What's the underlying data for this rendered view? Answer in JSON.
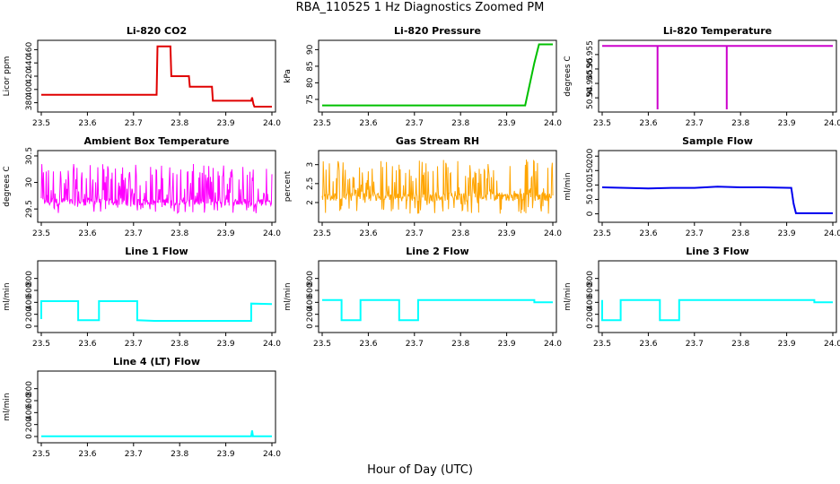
{
  "figure": {
    "title": "RBA_110525  1 Hz Diagnostics Zoomed PM",
    "xlabel": "Hour of Day (UTC)"
  },
  "chart_data": [
    {
      "type": "line",
      "title": "Li-820 CO2",
      "ylabel": "Licor ppm",
      "color": "#e00000",
      "xlim": [
        23.5,
        24.0
      ],
      "ylim": [
        370,
        470
      ],
      "xticks": [
        23.5,
        23.6,
        23.7,
        23.8,
        23.9,
        24.0
      ],
      "yticks": [
        380,
        400,
        420,
        440,
        460
      ],
      "series": [
        {
          "x": [
            23.5,
            23.6,
            23.69,
            23.75,
            23.752,
            23.78,
            23.782,
            23.82,
            23.822,
            23.87,
            23.872,
            23.955,
            23.957,
            23.96,
            23.962,
            24.0
          ],
          "y": [
            392,
            392,
            392,
            392,
            465,
            465,
            420,
            420,
            404,
            404,
            383,
            383,
            388,
            378,
            374,
            374
          ]
        }
      ]
    },
    {
      "type": "line",
      "title": "Li-820 Pressure",
      "ylabel": "kPa",
      "color": "#00c000",
      "xlim": [
        23.5,
        24.0
      ],
      "ylim": [
        72,
        92
      ],
      "xticks": [
        23.5,
        23.6,
        23.7,
        23.8,
        23.9,
        24.0
      ],
      "yticks": [
        75,
        80,
        85,
        90
      ],
      "series": [
        {
          "x": [
            23.5,
            23.93,
            23.94,
            23.96,
            23.97,
            24.0
          ],
          "y": [
            73.2,
            73.2,
            73.2,
            86,
            91.6,
            91.6
          ]
        }
      ]
    },
    {
      "type": "line",
      "title": "Li-820 Temperature",
      "ylabel": "degrees C",
      "color": "#cc00cc",
      "xlim": [
        23.5,
        24.0
      ],
      "ylim": [
        50.936,
        50.959
      ],
      "xticks": [
        23.5,
        23.6,
        23.7,
        23.8,
        23.9,
        24.0
      ],
      "yticks": [
        50.94,
        50.945,
        50.95,
        50.955
      ],
      "series": [
        {
          "x": [
            23.5,
            23.62,
            23.62,
            23.62,
            23.77,
            23.77,
            23.77,
            24.0
          ],
          "y": [
            50.958,
            50.958,
            50.936,
            50.958,
            50.958,
            50.936,
            50.958,
            50.958
          ]
        }
      ]
    },
    {
      "type": "line",
      "title": "Ambient Box Temperature",
      "ylabel": "degrees C",
      "color": "#ff00ff",
      "xlim": [
        23.5,
        24.0
      ],
      "ylim": [
        29.3,
        30.55
      ],
      "xticks": [
        23.5,
        23.6,
        23.7,
        23.8,
        23.9,
        24.0
      ],
      "yticks": [
        29.5,
        30.0,
        30.5
      ],
      "noise": {
        "base": 29.63,
        "low": 29.42,
        "high": 30.35
      }
    },
    {
      "type": "line",
      "title": "Gas Stream RH",
      "ylabel": "percent",
      "color": "#ffa500",
      "xlim": [
        23.5,
        24.0
      ],
      "ylim": [
        1.55,
        3.3
      ],
      "xticks": [
        23.5,
        23.6,
        23.7,
        23.8,
        23.9,
        24.0
      ],
      "yticks": [
        2.0,
        2.5,
        3.0
      ],
      "noise": {
        "base": 2.15,
        "low": 1.7,
        "high": 3.15
      }
    },
    {
      "type": "line",
      "title": "Sample Flow",
      "ylabel": "ml/min",
      "color": "#0000ee",
      "xlim": [
        23.5,
        24.0
      ],
      "ylim": [
        -20,
        210
      ],
      "xticks": [
        23.5,
        23.6,
        23.7,
        23.8,
        23.9,
        24.0
      ],
      "yticks": [
        0,
        50,
        100,
        150,
        200
      ],
      "series": [
        {
          "x": [
            23.5,
            23.6,
            23.65,
            23.7,
            23.75,
            23.8,
            23.85,
            23.91,
            23.915,
            23.92,
            24.0
          ],
          "y": [
            92,
            88,
            90,
            90,
            94,
            92,
            92,
            90,
            35,
            2,
            2
          ]
        }
      ]
    },
    {
      "type": "line",
      "title": "Line 1 Flow",
      "ylabel": "ml/min",
      "color": "#00ffff",
      "xlim": [
        23.5,
        24.0
      ],
      "ylim": [
        -60,
        1050
      ],
      "xticks": [
        23.5,
        23.6,
        23.7,
        23.8,
        23.9,
        24.0
      ],
      "yticks": [
        0,
        200,
        400,
        600,
        800
      ],
      "series": [
        {
          "x": [
            23.5,
            23.5,
            23.58,
            23.58,
            23.625,
            23.625,
            23.708,
            23.708,
            23.745,
            23.955,
            23.955,
            24.0
          ],
          "y": [
            120,
            420,
            420,
            100,
            100,
            420,
            420,
            100,
            90,
            90,
            380,
            370
          ]
        }
      ]
    },
    {
      "type": "line",
      "title": "Line 2 Flow",
      "ylabel": "ml/min",
      "color": "#00ffff",
      "xlim": [
        23.5,
        24.0
      ],
      "ylim": [
        -60,
        1050
      ],
      "xticks": [
        23.5,
        23.6,
        23.7,
        23.8,
        23.9,
        24.0
      ],
      "yticks": [
        0,
        200,
        400,
        600,
        800
      ],
      "series": [
        {
          "x": [
            23.5,
            23.542,
            23.542,
            23.583,
            23.583,
            23.667,
            23.667,
            23.708,
            23.708,
            23.96,
            23.96,
            24.0
          ],
          "y": [
            440,
            440,
            100,
            100,
            440,
            440,
            100,
            100,
            440,
            440,
            400,
            400
          ]
        }
      ]
    },
    {
      "type": "line",
      "title": "Line 3 Flow",
      "ylabel": "ml/min",
      "color": "#00ffff",
      "xlim": [
        23.5,
        24.0
      ],
      "ylim": [
        -60,
        1050
      ],
      "xticks": [
        23.5,
        23.6,
        23.7,
        23.8,
        23.9,
        24.0
      ],
      "yticks": [
        0,
        200,
        400,
        600,
        800
      ],
      "series": [
        {
          "x": [
            23.5,
            23.5,
            23.54,
            23.54,
            23.625,
            23.625,
            23.667,
            23.667,
            23.96,
            23.96,
            24.0
          ],
          "y": [
            440,
            100,
            100,
            440,
            440,
            100,
            100,
            440,
            440,
            400,
            400
          ]
        }
      ]
    },
    {
      "type": "line",
      "title": "Line 4 (LT) Flow",
      "ylabel": "ml/min",
      "color": "#00ffff",
      "xlim": [
        23.5,
        24.0
      ],
      "ylim": [
        -60,
        1050
      ],
      "xticks": [
        23.5,
        23.6,
        23.7,
        23.8,
        23.9,
        24.0
      ],
      "yticks": [
        0,
        200,
        400,
        600,
        800
      ],
      "series": [
        {
          "x": [
            23.5,
            23.955,
            23.957,
            23.959,
            24.0
          ],
          "y": [
            5,
            5,
            100,
            5,
            5
          ]
        }
      ]
    }
  ]
}
